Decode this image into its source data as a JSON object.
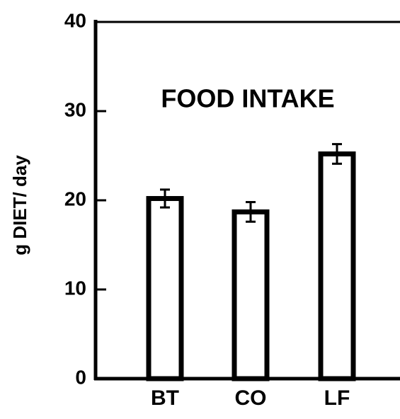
{
  "chart_data": {
    "type": "bar",
    "title": "FOOD INTAKE",
    "y_label": "g DIET/ day",
    "categories": [
      "BT",
      "CO",
      "LF"
    ],
    "values": [
      20.2,
      18.7,
      25.2
    ],
    "errors": [
      1.0,
      1.1,
      1.1
    ],
    "color": "#ffffff",
    "ylim": [
      0,
      40
    ],
    "yticks": [
      0,
      10,
      20,
      30,
      40
    ],
    "grid": false
  }
}
